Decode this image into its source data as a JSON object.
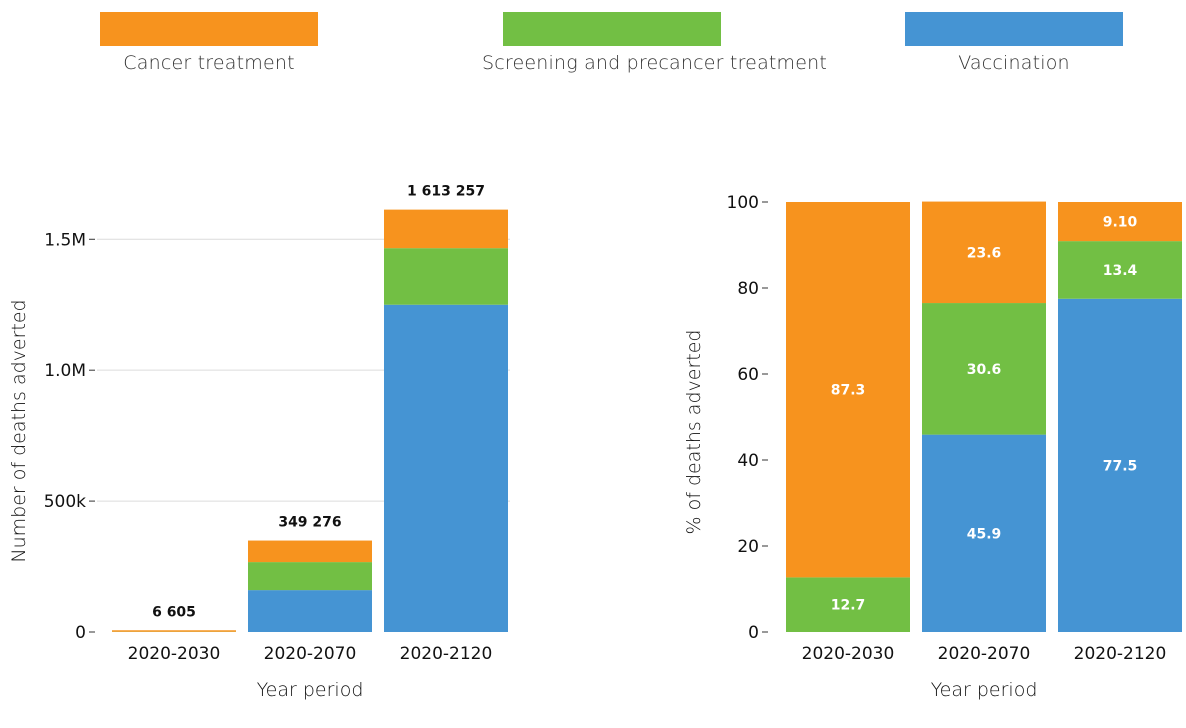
{
  "legend": [
    {
      "label": "Cancer treatment",
      "color": "#F7931E"
    },
    {
      "label": "Screening and precancer treatment",
      "color": "#72BF44"
    },
    {
      "label": "Vaccination",
      "color": "#4594D3"
    }
  ],
  "chart_data": [
    {
      "type": "bar",
      "stacked": true,
      "title": "",
      "xlabel": "Year period",
      "ylabel": "Number of deaths adverted",
      "categories": [
        "2020-2030",
        "2020-2070",
        "2020-2120"
      ],
      "ylim": [
        0,
        1650000
      ],
      "yticks": [
        {
          "value": 0,
          "label": "0"
        },
        {
          "value": 500000,
          "label": "500k"
        },
        {
          "value": 1000000,
          "label": "1.0M"
        },
        {
          "value": 1500000,
          "label": "1.5M"
        }
      ],
      "grid": true,
      "series": [
        {
          "name": "Vaccination",
          "color": "#4594D3",
          "values": [
            0,
            160000,
            1250000
          ]
        },
        {
          "name": "Screening and precancer treatment",
          "color": "#72BF44",
          "values": [
            840,
            107000,
            216000
          ]
        },
        {
          "name": "Cancer treatment",
          "color": "#F7931E",
          "values": [
            5765,
            82276,
            147257
          ]
        }
      ],
      "totals": [
        6605,
        349276,
        1613257
      ],
      "total_labels": [
        "6 605",
        "349 276",
        "1 613 257"
      ]
    },
    {
      "type": "bar",
      "stacked": true,
      "title": "",
      "xlabel": "Year period",
      "ylabel": "% of deaths adverted",
      "categories": [
        "2020-2030",
        "2020-2070",
        "2020-2120"
      ],
      "ylim": [
        0,
        100
      ],
      "yticks": [
        {
          "value": 0,
          "label": "0"
        },
        {
          "value": 20,
          "label": "20"
        },
        {
          "value": 40,
          "label": "40"
        },
        {
          "value": 60,
          "label": "60"
        },
        {
          "value": 80,
          "label": "80"
        },
        {
          "value": 100,
          "label": "100"
        }
      ],
      "grid": false,
      "series": [
        {
          "name": "Vaccination",
          "color": "#4594D3",
          "values": [
            0,
            45.9,
            77.5
          ],
          "labels": [
            "",
            "45.9",
            "77.5"
          ]
        },
        {
          "name": "Screening and precancer treatment",
          "color": "#72BF44",
          "values": [
            12.7,
            30.6,
            13.4
          ],
          "labels": [
            "12.7",
            "30.6",
            "13.4"
          ]
        },
        {
          "name": "Cancer treatment",
          "color": "#F7931E",
          "values": [
            87.3,
            23.6,
            9.1
          ],
          "labels": [
            "87.3",
            "23.6",
            "9.10"
          ]
        }
      ]
    }
  ]
}
